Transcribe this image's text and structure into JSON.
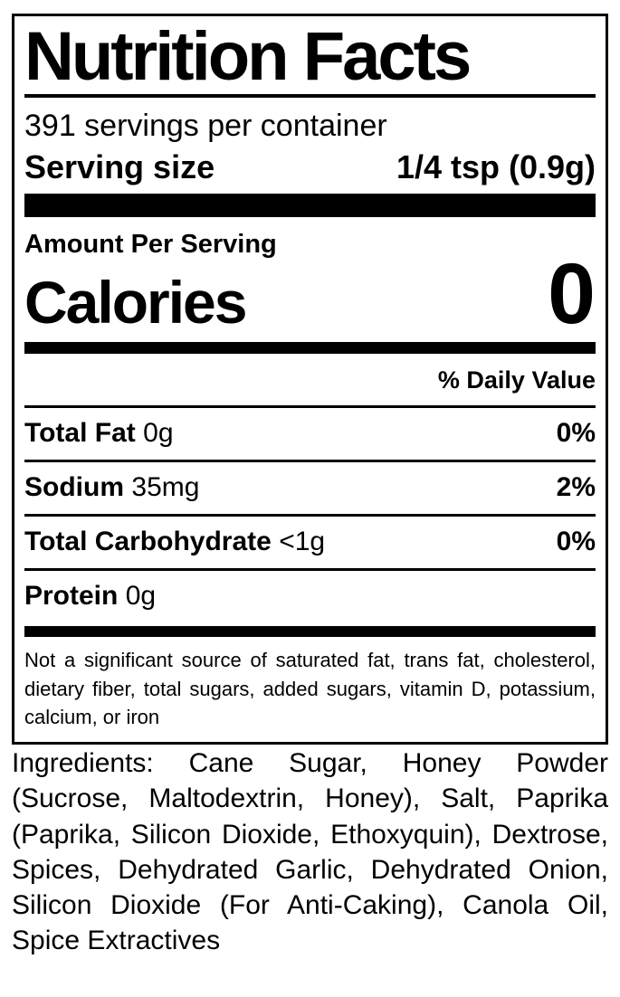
{
  "label": {
    "title": "Nutrition Facts",
    "servings_per_container": "391 servings per container",
    "serving_size_label": "Serving size",
    "serving_size_value": "1/4 tsp (0.9g)",
    "amount_per_serving": "Amount Per Serving",
    "calories_label": "Calories",
    "calories_value": "0",
    "daily_value_header": "% Daily Value",
    "nutrients": [
      {
        "name": "Total Fat",
        "amount": "0g",
        "dv": "0%"
      },
      {
        "name": "Sodium",
        "amount": "35mg",
        "dv": "2%"
      },
      {
        "name": "Total Carbohydrate",
        "amount": "<1g",
        "dv": "0%"
      },
      {
        "name": "Protein",
        "amount": "0g",
        "dv": ""
      }
    ],
    "footnote": "Not a significant source of saturated fat, trans fat, cholesterol, dietary fiber, total sugars, added sugars, vitamin D, potassium, calcium, or iron"
  },
  "ingredients": {
    "text": "Ingredients: Cane Sugar, Honey Powder (Sucrose, Maltodextrin, Honey), Salt, Paprika (Paprika, Silicon Dioxide, Ethoxyquin), Dextrose, Spices, Dehydrated Garlic, Dehydrated Onion, Silicon Dioxide (For Anti-Caking), Canola Oil, Spice Extractives"
  },
  "colors": {
    "text": "#000000",
    "background": "#ffffff"
  }
}
